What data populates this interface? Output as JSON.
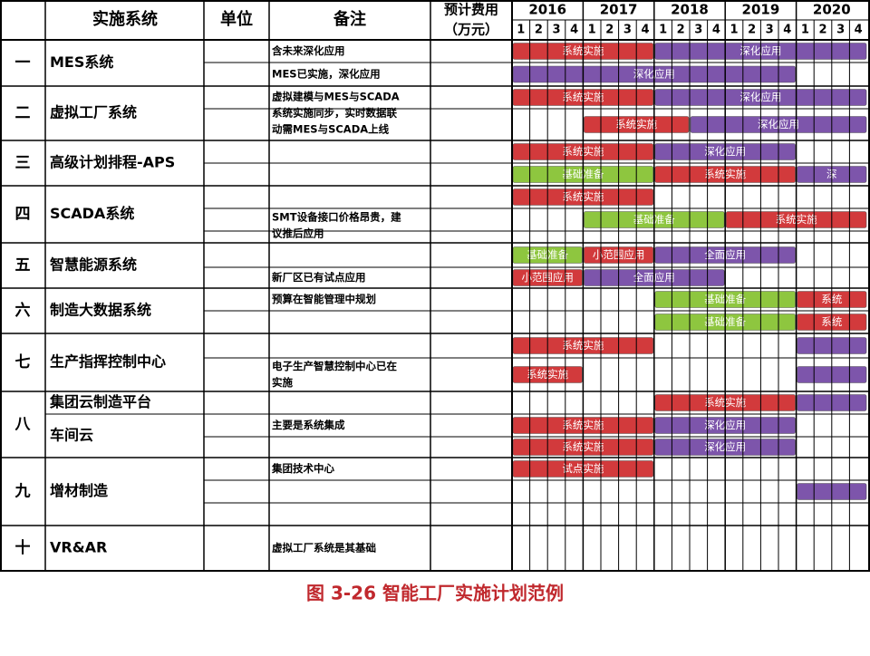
{
  "header": {
    "system": "实施系统",
    "unit": "单位",
    "note": "备注",
    "cost": [
      "预计费用",
      "（万元）"
    ],
    "years": [
      2016,
      2017,
      2018,
      2019,
      2020
    ],
    "quarters": [
      "1",
      "2",
      "3",
      "4"
    ]
  },
  "rows": [
    {
      "num": "一",
      "names": [
        "MES系统"
      ],
      "notes": [
        {
          "text": [
            "含未来深化应用"
          ],
          "lane": 0
        },
        {
          "text": [
            "MES已实施，深化应用"
          ],
          "lane": 1
        }
      ],
      "bars": [
        {
          "label": "系统实施",
          "start": 0,
          "end": 8,
          "lane": 0,
          "color": "#d23a3c"
        },
        {
          "label": "深化应用",
          "start": 8,
          "end": 20,
          "lane": 0,
          "color": "#7d55ab"
        },
        {
          "label": "深化应用",
          "start": 0,
          "end": 16,
          "lane": 1,
          "color": "#7d55ab"
        }
      ]
    },
    {
      "num": "二",
      "names": [
        "虚拟工厂系统"
      ],
      "notes": [
        {
          "text": [
            "虚拟建模与MES与SCADA",
            "系统实施同步，实时数据联",
            "动需MES与SCADA上线"
          ],
          "lane": 0
        }
      ],
      "bars": [
        {
          "label": "系统实施",
          "start": 0,
          "end": 8,
          "lane": 0,
          "color": "#d23a3c"
        },
        {
          "label": "深化应用",
          "start": 8,
          "end": 20,
          "lane": 0,
          "color": "#7d55ab"
        },
        {
          "label": "系统实施",
          "start": 4,
          "end": 10,
          "lane": 1,
          "color": "#d23a3c"
        },
        {
          "label": "深化应用",
          "start": 10,
          "end": 20,
          "lane": 1,
          "color": "#7d55ab"
        }
      ]
    },
    {
      "num": "三",
      "names": [
        "高级计划排程-APS"
      ],
      "notes": [],
      "bars": [
        {
          "label": "系统实施",
          "start": 0,
          "end": 8,
          "lane": 0,
          "color": "#d23a3c"
        },
        {
          "label": "深化应用",
          "start": 8,
          "end": 16,
          "lane": 0,
          "color": "#7d55ab"
        },
        {
          "label": "基础准备",
          "start": 0,
          "end": 8,
          "lane": 1,
          "color": "#8ec63f"
        },
        {
          "label": "系统实施",
          "start": 8,
          "end": 16,
          "lane": 1,
          "color": "#d23a3c"
        },
        {
          "label": "深",
          "start": 16,
          "end": 20,
          "lane": 1,
          "color": "#7d55ab"
        }
      ]
    },
    {
      "num": "四",
      "names": [
        "SCADA系统"
      ],
      "notes": [
        {
          "text": [
            "SMT设备接口价格昂贵，建",
            "议推后应用"
          ],
          "lane": 1
        }
      ],
      "bars": [
        {
          "label": "系统实施",
          "start": 0,
          "end": 8,
          "lane": 0,
          "color": "#d23a3c"
        },
        {
          "label": "基础准备",
          "start": 4,
          "end": 12,
          "lane": 1,
          "color": "#8ec63f"
        },
        {
          "label": "系统实施",
          "start": 12,
          "end": 20,
          "lane": 1,
          "color": "#d23a3c"
        }
      ]
    },
    {
      "num": "五",
      "names": [
        "智慧能源系统"
      ],
      "notes": [
        {
          "text": [
            "新厂区已有试点应用"
          ],
          "lane": 1
        }
      ],
      "bars": [
        {
          "label": "基础准备",
          "start": 0,
          "end": 4,
          "lane": 0,
          "color": "#8ec63f"
        },
        {
          "label": "小范围应用",
          "start": 4,
          "end": 8,
          "lane": 0,
          "color": "#d23a3c"
        },
        {
          "label": "全面应用",
          "start": 8,
          "end": 16,
          "lane": 0,
          "color": "#7d55ab"
        },
        {
          "label": "小范围应用",
          "start": 0,
          "end": 4,
          "lane": 1,
          "color": "#d23a3c"
        },
        {
          "label": "全面应用",
          "start": 4,
          "end": 12,
          "lane": 1,
          "color": "#7d55ab"
        }
      ]
    },
    {
      "num": "六",
      "names": [
        "制造大数据系统"
      ],
      "notes": [
        {
          "text": [
            "预算在智能管理中规划"
          ],
          "lane": 0
        }
      ],
      "bars": [
        {
          "label": "基础准备",
          "start": 8,
          "end": 16,
          "lane": 0,
          "color": "#8ec63f"
        },
        {
          "label": "系统",
          "start": 16,
          "end": 20,
          "lane": 0,
          "color": "#d23a3c"
        },
        {
          "label": "基础准备",
          "start": 8,
          "end": 16,
          "lane": 1,
          "color": "#8ec63f"
        },
        {
          "label": "系统",
          "start": 16,
          "end": 20,
          "lane": 1,
          "color": "#d23a3c"
        }
      ]
    },
    {
      "num": "七",
      "names": [
        "生产指挥控制中心"
      ],
      "notes": [
        {
          "text": [
            "电子生产智慧控制中心已在",
            "实施"
          ],
          "lane": 1
        }
      ],
      "bars": [
        {
          "label": "系统实施",
          "start": 0,
          "end": 8,
          "lane": 0,
          "color": "#d23a3c"
        },
        {
          "start": 16,
          "end": 20,
          "lane": 0,
          "color": "#7d55ab"
        },
        {
          "label": "系统实施",
          "start": 0,
          "end": 4,
          "lane": 1,
          "color": "#d23a3c"
        },
        {
          "start": 16,
          "end": 20,
          "lane": 1,
          "color": "#7d55ab"
        }
      ]
    },
    {
      "num": "八",
      "names": [
        "集团云制造平台",
        "车间云"
      ],
      "notes": [
        {
          "text": [
            "主要是系统集成"
          ],
          "lane": 1
        }
      ],
      "bars": [
        {
          "label": "系统实施",
          "start": 8,
          "end": 16,
          "lane": 0,
          "color": "#d23a3c"
        },
        {
          "start": 16,
          "end": 20,
          "lane": 0,
          "color": "#7d55ab"
        },
        {
          "label": "系统实施",
          "start": 0,
          "end": 8,
          "lane": 1,
          "color": "#d23a3c"
        },
        {
          "label": "深化应用",
          "start": 8,
          "end": 16,
          "lane": 1,
          "color": "#7d55ab"
        },
        {
          "label": "系统实施",
          "start": 0,
          "end": 8,
          "lane": 2,
          "color": "#d23a3c"
        },
        {
          "label": "深化应用",
          "start": 8,
          "end": 16,
          "lane": 2,
          "color": "#7d55ab"
        }
      ]
    },
    {
      "num": "九",
      "names": [
        "增材制造"
      ],
      "notes": [
        {
          "text": [
            "集团技术中心"
          ],
          "lane": 0
        }
      ],
      "bars": [
        {
          "label": "试点实施",
          "start": 0,
          "end": 8,
          "lane": 0,
          "color": "#d23a3c"
        },
        {
          "start": 16,
          "end": 20,
          "lane": 1,
          "color": "#7d55ab"
        }
      ]
    },
    {
      "num": "十",
      "names": [
        "VR&AR"
      ],
      "notes": [
        {
          "text": [
            "虚拟工厂系统是其基础"
          ],
          "lane": 0
        }
      ],
      "bars": []
    }
  ],
  "caption": "图 3-26 智能工厂实施计划范例"
}
